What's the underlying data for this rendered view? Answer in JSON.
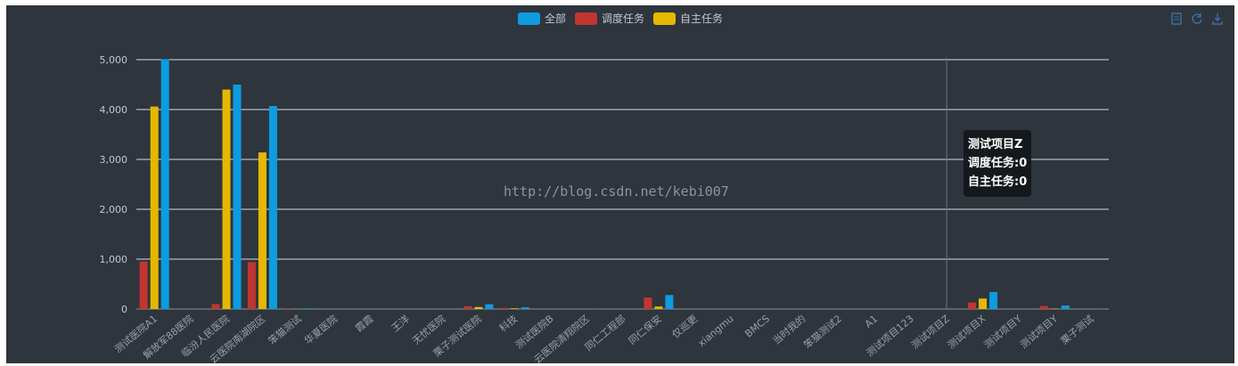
{
  "chart_data": {
    "type": "bar",
    "legend": {
      "position": "top-center"
    },
    "ylim": [
      0,
      5000
    ],
    "yticks": [
      "0",
      "1,000",
      "2,000",
      "3,000",
      "4,000",
      "5,000"
    ],
    "categories": [
      "测试医院A1",
      "解放军88医院",
      "临汾人民医院",
      "云医院南湖院区",
      "笨猫测试",
      "华夏医院",
      "霞霞",
      "王洋",
      "无忧医院",
      "栗子测试医院",
      "科技",
      "测试医院B",
      "云医院清翔院区",
      "同仁工程部",
      "同仁保安",
      "仅巡更",
      "xiangmu",
      "BMCS",
      "当时我的",
      "笨猫测试2",
      "A1",
      "测试项目123",
      "测试项目Z",
      "测试项目X",
      "测试项目Y",
      "测试项目Y",
      "栗子测试"
    ],
    "series": [
      {
        "name": "调度任务",
        "color": "#c23531",
        "values": [
          950,
          0,
          100,
          940,
          15,
          0,
          0,
          0,
          0,
          55,
          20,
          0,
          0,
          0,
          230,
          0,
          0,
          0,
          0,
          0,
          0,
          0,
          0,
          130,
          0,
          60,
          0
        ]
      },
      {
        "name": "自主任务",
        "color": "#e5b800",
        "values": [
          4060,
          0,
          4400,
          3140,
          0,
          0,
          0,
          0,
          0,
          40,
          15,
          0,
          0,
          0,
          50,
          0,
          0,
          0,
          0,
          0,
          0,
          0,
          0,
          210,
          0,
          10,
          0
        ]
      },
      {
        "name": "全部",
        "color": "#0e9ce0",
        "values": [
          5010,
          0,
          4500,
          4070,
          15,
          0,
          0,
          0,
          0,
          95,
          35,
          0,
          5,
          0,
          280,
          0,
          0,
          0,
          0,
          0,
          0,
          0,
          0,
          340,
          0,
          70,
          5
        ]
      }
    ],
    "legend_order": [
      "全部",
      "调度任务",
      "自主任务"
    ],
    "tooltip": {
      "category": "测试项目Z",
      "lines": [
        "调度任务:0",
        "自主任务:0"
      ]
    }
  },
  "toolbox": {
    "icons": [
      "data-view-icon",
      "restore-icon",
      "save-image-icon"
    ]
  },
  "watermark": "http://blog.csdn.net/kebi007"
}
